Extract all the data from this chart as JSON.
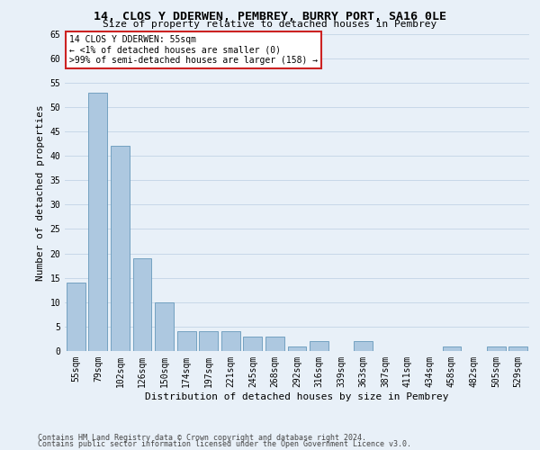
{
  "title": "14, CLOS Y DDERWEN, PEMBREY, BURRY PORT, SA16 0LE",
  "subtitle": "Size of property relative to detached houses in Pembrey",
  "xlabel": "Distribution of detached houses by size in Pembrey",
  "ylabel": "Number of detached properties",
  "categories": [
    "55sqm",
    "79sqm",
    "102sqm",
    "126sqm",
    "150sqm",
    "174sqm",
    "197sqm",
    "221sqm",
    "245sqm",
    "268sqm",
    "292sqm",
    "316sqm",
    "339sqm",
    "363sqm",
    "387sqm",
    "411sqm",
    "434sqm",
    "458sqm",
    "482sqm",
    "505sqm",
    "529sqm"
  ],
  "values": [
    14,
    53,
    42,
    19,
    10,
    4,
    4,
    4,
    3,
    3,
    1,
    2,
    0,
    2,
    0,
    0,
    0,
    1,
    0,
    1,
    1
  ],
  "highlight_index": 0,
  "bar_color": "#adc8e0",
  "highlight_color": "#adc8e0",
  "edge_color": "#6699bb",
  "annotation_text": "14 CLOS Y DDERWEN: 55sqm\n← <1% of detached houses are smaller (0)\n>99% of semi-detached houses are larger (158) →",
  "annotation_box_facecolor": "#ffffff",
  "annotation_border_color": "#cc2222",
  "footer_line1": "Contains HM Land Registry data © Crown copyright and database right 2024.",
  "footer_line2": "Contains public sector information licensed under the Open Government Licence v3.0.",
  "ylim": [
    0,
    65
  ],
  "yticks": [
    0,
    5,
    10,
    15,
    20,
    25,
    30,
    35,
    40,
    45,
    50,
    55,
    60,
    65
  ],
  "grid_color": "#c8d8e8",
  "background_color": "#e8f0f8",
  "title_fontsize": 9.5,
  "subtitle_fontsize": 8,
  "ylabel_fontsize": 8,
  "xlabel_fontsize": 8,
  "tick_fontsize": 7,
  "annotation_fontsize": 7,
  "footer_fontsize": 6
}
